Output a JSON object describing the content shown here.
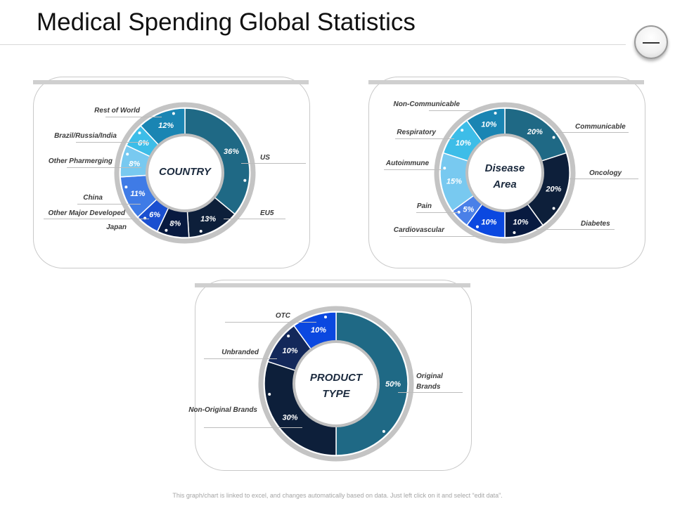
{
  "page": {
    "title": "Medical Spending Global Statistics",
    "footer": "This graph/chart is linked to excel, and changes automatically based on data. Just left click on it and select “edit data”."
  },
  "chart_data": [
    {
      "type": "pie",
      "center_label": "COUNTRY",
      "slices": [
        {
          "label": "US",
          "value": 36,
          "display": "36%",
          "color": "#1f6985"
        },
        {
          "label": "EU5",
          "value": 13,
          "display": "13%",
          "color": "#0d1f3a"
        },
        {
          "label": "Japan",
          "value": 8,
          "display": "8%",
          "color": "#081a40"
        },
        {
          "label": "Other Major Developed",
          "value": 6,
          "display": "6%",
          "color": "#1a4fd0"
        },
        {
          "label": "China",
          "value": 11,
          "display": "11%",
          "color": "#3f7be6"
        },
        {
          "label": "Other Pharmerging",
          "value": 8,
          "display": "8%",
          "color": "#78c9f0"
        },
        {
          "label": "Brazil/Russia/India",
          "value": 6,
          "display": "6%",
          "color": "#3dbde8"
        },
        {
          "label": "Rest of World",
          "value": 12,
          "display": "12%",
          "color": "#1a85b3"
        }
      ]
    },
    {
      "type": "pie",
      "center_label_lines": [
        "Disease",
        "Area"
      ],
      "slices": [
        {
          "label": "Communicable",
          "value": 20,
          "display": "20%",
          "color": "#1f6985"
        },
        {
          "label": "Oncology",
          "value": 20,
          "display": "20%",
          "color": "#0d1f3a"
        },
        {
          "label": "Diabetes",
          "value": 10,
          "display": "10%",
          "color": "#081a40"
        },
        {
          "label": "Cardiovascular",
          "value": 10,
          "display": "10%",
          "color": "#0b48e0"
        },
        {
          "label": "Pain",
          "value": 5,
          "display": "5%",
          "color": "#4a80e8"
        },
        {
          "label": "Autoimmune",
          "value": 15,
          "display": "15%",
          "color": "#78c9f0"
        },
        {
          "label": "Respiratory",
          "value": 10,
          "display": "10%",
          "color": "#3dbde8"
        },
        {
          "label": "Non-Communicable",
          "value": 10,
          "display": "10%",
          "color": "#1a85b3"
        }
      ]
    },
    {
      "type": "pie",
      "center_label_lines": [
        "PRODUCT",
        "TYPE"
      ],
      "slices": [
        {
          "label": "Original Brands",
          "value": 50,
          "display": "50%",
          "color": "#1f6985"
        },
        {
          "label": "Non-Original Brands",
          "value": 30,
          "display": "30%",
          "color": "#0d1f3a"
        },
        {
          "label": "Unbranded",
          "value": 10,
          "display": "10%",
          "color": "#13285a"
        },
        {
          "label": "OTC",
          "value": 10,
          "display": "10%",
          "color": "#0b48e0"
        }
      ]
    }
  ]
}
